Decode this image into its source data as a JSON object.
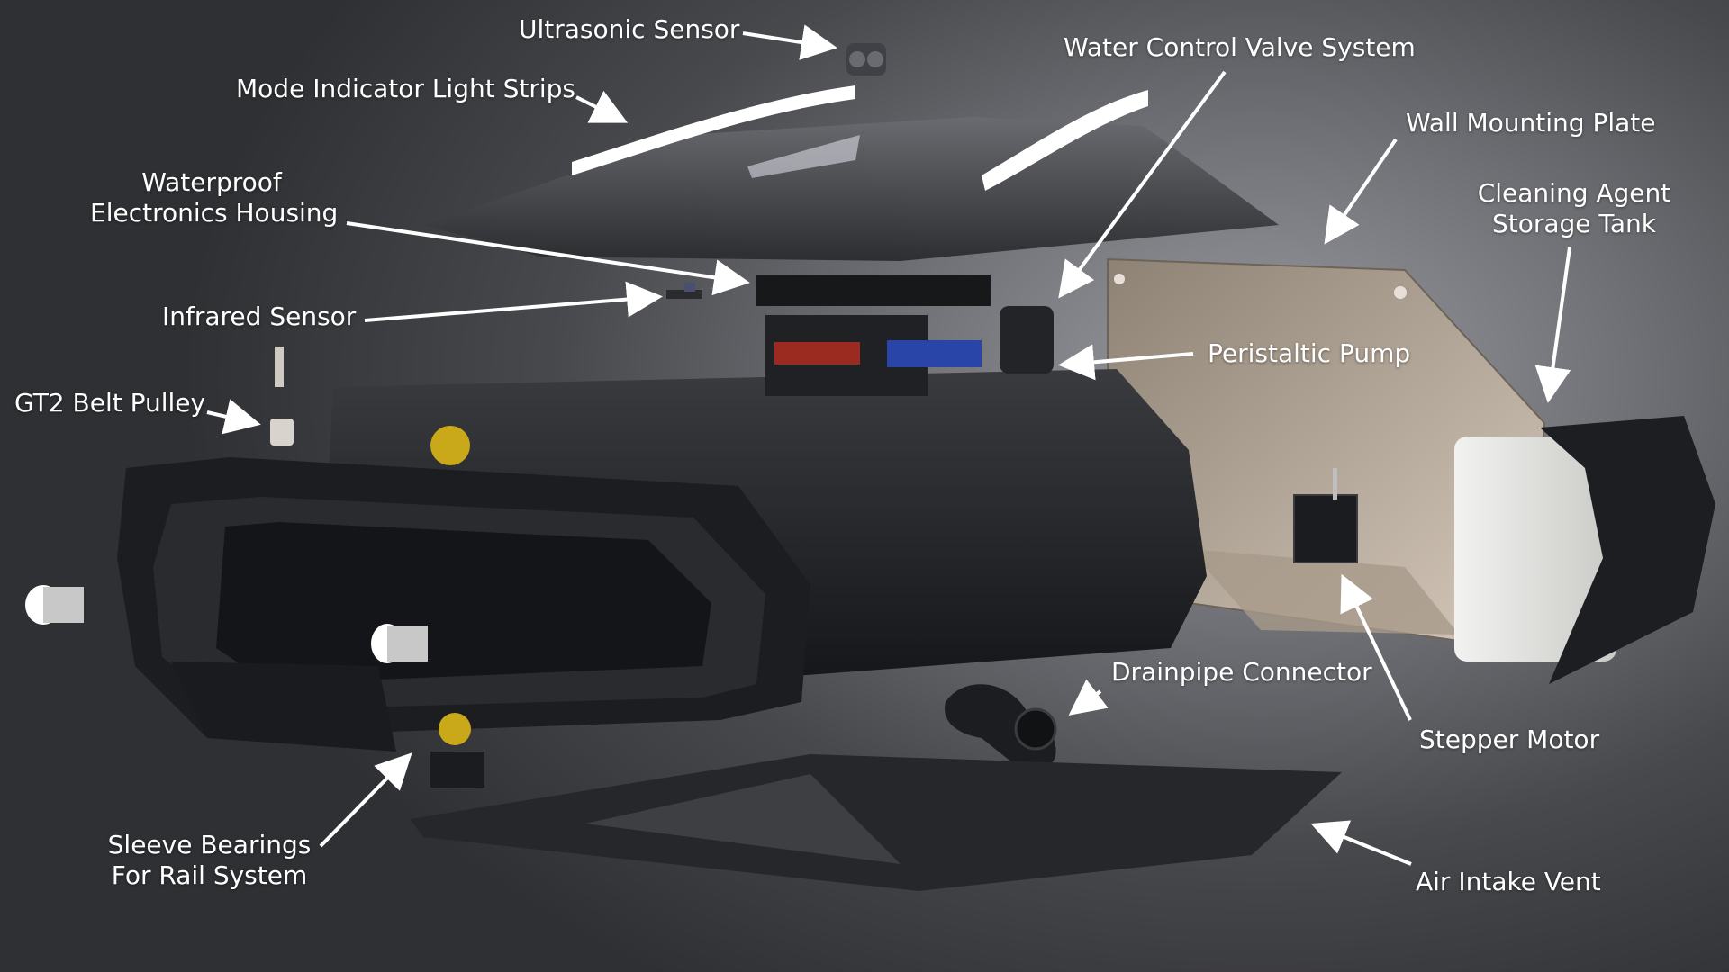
{
  "labels": {
    "ultrasonic_sensor": "Ultrasonic Sensor",
    "mode_indicator_light_strips": "Mode Indicator Light Strips",
    "water_control_valve_system": "Water Control Valve System",
    "wall_mounting_plate": "Wall Mounting Plate",
    "waterproof_electronics_housing": [
      "Waterproof",
      "Electronics Housing"
    ],
    "cleaning_agent_storage_tank": [
      "Cleaning Agent",
      "Storage Tank"
    ],
    "infrared_sensor": "Infrared Sensor",
    "peristaltic_pump": "Peristaltic Pump",
    "gt2_belt_pulley": "GT2 Belt Pulley",
    "drainpipe_connector": "Drainpipe Connector",
    "stepper_motor": "Stepper Motor",
    "sleeve_bearings_for_rail_system": [
      "Sleeve Bearings",
      "For Rail System"
    ],
    "air_intake_vent": "Air Intake Vent"
  },
  "colors": {
    "background": "#4a4b4f",
    "body": "#1f2023",
    "plate": "#b9aa9a",
    "tank": "#e8e8e6",
    "pcb_red": "#9b2b20",
    "pcb_blue": "#2945a8",
    "gear_yellow": "#c9a81a",
    "light_strip": "#ffffff",
    "label_text": "#ffffff"
  }
}
